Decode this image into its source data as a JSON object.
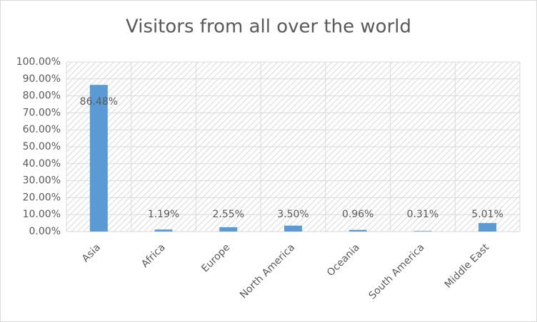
{
  "chart_data": {
    "type": "bar",
    "title": "Visitors from all over the world",
    "categories": [
      "Asia",
      "Africa",
      "Europe",
      "North America",
      "Oceania",
      "South America",
      "Middle East"
    ],
    "values": [
      86.48,
      1.19,
      2.55,
      3.5,
      0.96,
      0.31,
      5.01
    ],
    "value_labels": [
      "86.48%",
      "1.19%",
      "2.55%",
      "3.50%",
      "0.96%",
      "0.31%",
      "5.01%"
    ],
    "color": "#5b9bd5",
    "ylim": [
      0,
      100
    ],
    "yticks": [
      {
        "value": 0,
        "label": "0.00%"
      },
      {
        "value": 10,
        "label": "10.00%"
      },
      {
        "value": 20,
        "label": "20.00%"
      },
      {
        "value": 30,
        "label": "30.00%"
      },
      {
        "value": 40,
        "label": "40.00%"
      },
      {
        "value": 50,
        "label": "50.00%"
      },
      {
        "value": 60,
        "label": "60.00%"
      },
      {
        "value": 70,
        "label": "70.00%"
      },
      {
        "value": 80,
        "label": "80.00%"
      },
      {
        "value": 90,
        "label": "90.00%"
      },
      {
        "value": 100,
        "label": "100.00%"
      }
    ],
    "grid": true
  }
}
